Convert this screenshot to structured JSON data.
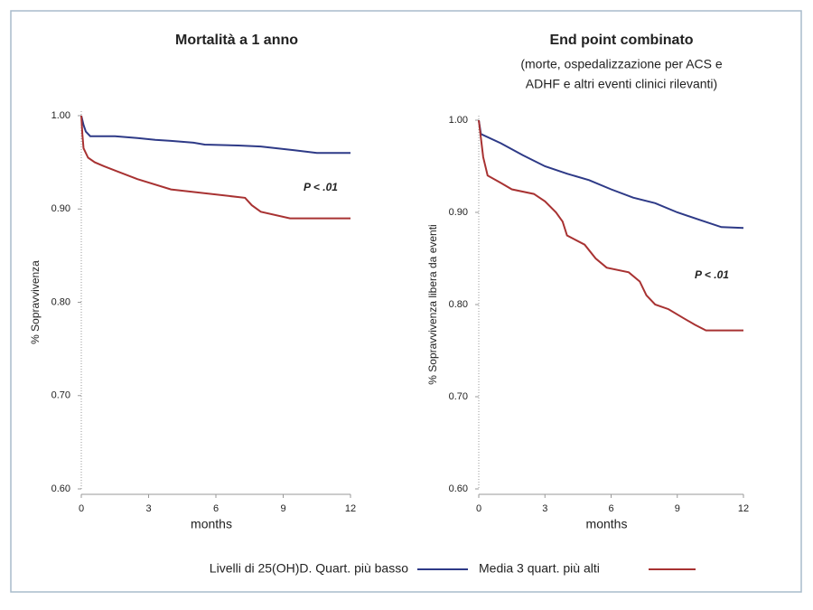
{
  "chart_data": [
    {
      "type": "line",
      "title": "Mortalità a 1 anno",
      "y_label": "% Sopravvivenza",
      "x_label": "months",
      "annotation": "P < .01",
      "xlim": [
        0,
        12
      ],
      "xticks": [
        0,
        3,
        6,
        9,
        12
      ],
      "ylim": [
        0.6,
        1.0
      ],
      "yticks": [
        {
          "value": 0.6,
          "label": "0.60"
        },
        {
          "value": 0.7,
          "label": "0.70"
        },
        {
          "value": 0.8,
          "label": "0.80"
        },
        {
          "value": 0.9,
          "label": "0.90"
        },
        {
          "value": 1.0,
          "label": "1.00"
        }
      ],
      "series": [
        {
          "name": "Livelli di 25(OH)D. Quart. più basso",
          "color": "#2e3a87",
          "x": [
            0,
            0.1,
            0.2,
            0.4,
            1.5,
            2.5,
            3.3,
            4.0,
            5.0,
            5.5,
            7.0,
            8.0,
            9.5,
            10.5,
            12
          ],
          "values": [
            1.0,
            0.99,
            0.983,
            0.978,
            0.978,
            0.976,
            0.974,
            0.973,
            0.971,
            0.969,
            0.968,
            0.967,
            0.963,
            0.96,
            0.96
          ]
        },
        {
          "name": "Media 3 quart. più alti",
          "color": "#a83232",
          "x": [
            0,
            0.05,
            0.1,
            0.3,
            0.6,
            1.0,
            2.5,
            4.0,
            7.3,
            7.6,
            8.0,
            9.3,
            12
          ],
          "values": [
            1.0,
            0.98,
            0.965,
            0.955,
            0.95,
            0.946,
            0.932,
            0.921,
            0.912,
            0.904,
            0.897,
            0.89,
            0.89
          ]
        }
      ]
    },
    {
      "type": "line",
      "title": "End point combinato",
      "subtitle": [
        "(morte, ospedalizzazione per ACS e",
        "ADHF e altri eventi clinici rilevanti)"
      ],
      "y_label": "% Sopravvivenza libera da eventi",
      "x_label": "months",
      "annotation": "P < .01",
      "xlim": [
        0,
        12
      ],
      "xticks": [
        0,
        3,
        6,
        9,
        12
      ],
      "ylim": [
        0.6,
        1.0
      ],
      "yticks": [
        {
          "value": 0.6,
          "label": "0.60"
        },
        {
          "value": 0.7,
          "label": "0.70"
        },
        {
          "value": 0.8,
          "label": "0.80"
        },
        {
          "value": 0.9,
          "label": "0.90"
        },
        {
          "value": 1.0,
          "label": "1.00"
        }
      ],
      "series": [
        {
          "name": "Livelli di 25(OH)D. Quart. più basso",
          "color": "#2e3a87",
          "x": [
            0,
            0.1,
            1,
            2,
            3,
            4,
            5,
            6,
            7,
            8,
            9,
            10,
            11,
            12
          ],
          "values": [
            1.0,
            0.985,
            0.975,
            0.962,
            0.95,
            0.942,
            0.935,
            0.925,
            0.916,
            0.91,
            0.9,
            0.892,
            0.884,
            0.883
          ]
        },
        {
          "name": "Media 3 quart. più alti",
          "color": "#a83232",
          "x": [
            0,
            0.2,
            0.4,
            1.0,
            1.5,
            2.5,
            3.0,
            3.5,
            3.8,
            4.0,
            4.8,
            5.3,
            5.8,
            6.8,
            7.3,
            7.6,
            8.0,
            8.6,
            9.3,
            9.8,
            10.3,
            12
          ],
          "values": [
            1.0,
            0.96,
            0.94,
            0.932,
            0.925,
            0.92,
            0.912,
            0.9,
            0.89,
            0.875,
            0.865,
            0.85,
            0.84,
            0.835,
            0.825,
            0.81,
            0.8,
            0.795,
            0.785,
            0.778,
            0.772,
            0.772
          ]
        }
      ]
    }
  ]
}
